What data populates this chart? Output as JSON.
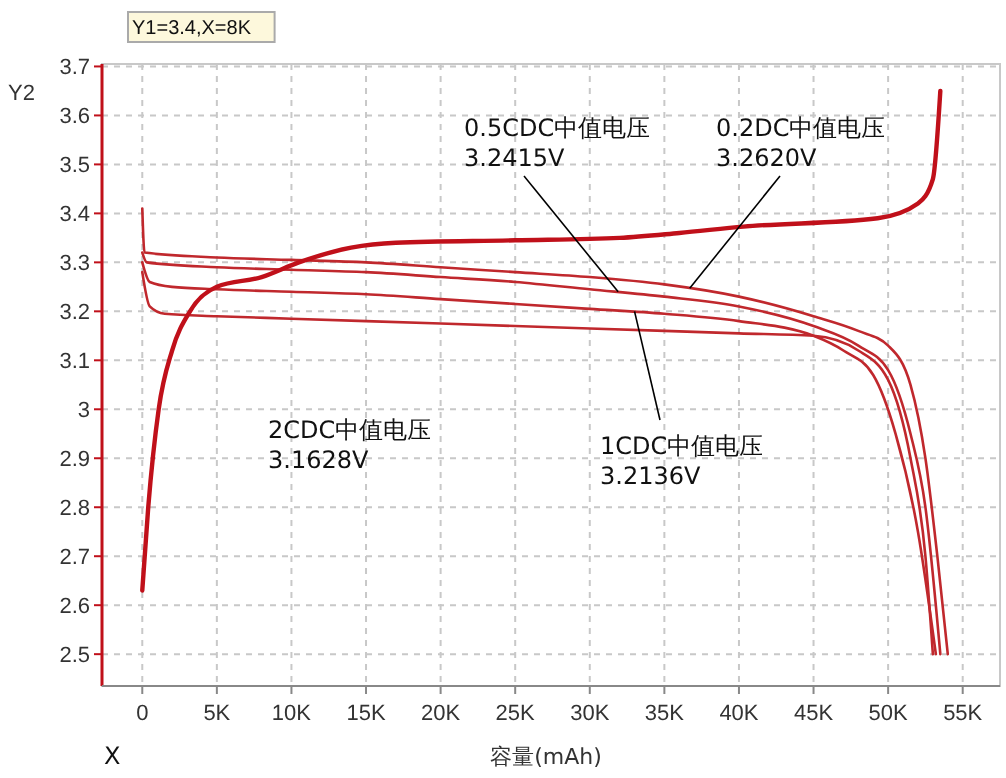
{
  "chart_data": {
    "type": "line",
    "xlabel": "容量(mAh)",
    "ylabel": "Y2",
    "xlim": [
      -2700,
      57500
    ],
    "ylim": [
      2.435,
      3.705
    ],
    "xticks": [
      {
        "value": 0,
        "label": "0"
      },
      {
        "value": 5000,
        "label": "5K"
      },
      {
        "value": 10000,
        "label": "10K"
      },
      {
        "value": 15000,
        "label": "15K"
      },
      {
        "value": 20000,
        "label": "20K"
      },
      {
        "value": 25000,
        "label": "25K"
      },
      {
        "value": 30000,
        "label": "30K"
      },
      {
        "value": 35000,
        "label": "35K"
      },
      {
        "value": 40000,
        "label": "40K"
      },
      {
        "value": 45000,
        "label": "45K"
      },
      {
        "value": 50000,
        "label": "50K"
      },
      {
        "value": 55000,
        "label": "55K"
      }
    ],
    "yticks": [
      2.5,
      2.6,
      2.7,
      2.8,
      2.9,
      3.0,
      3.1,
      3.2,
      3.3,
      3.4,
      3.5,
      3.6,
      3.7
    ],
    "grid": true,
    "marker": "none",
    "line_style": "solid",
    "series": [
      {
        "color": "#c0282d",
        "x": [
          0,
          150,
          5000,
          10000,
          15000,
          20000,
          25000,
          30000,
          35000,
          40000,
          45000,
          48000,
          50000,
          51500,
          52500,
          53300,
          54000
        ],
        "values": [
          3.41,
          3.32,
          3.31,
          3.305,
          3.3,
          3.29,
          3.28,
          3.27,
          3.255,
          3.23,
          3.19,
          3.16,
          3.13,
          3.05,
          2.9,
          2.7,
          2.5
        ]
      },
      {
        "color": "#c0282d",
        "x": [
          0,
          300,
          5000,
          10000,
          15000,
          20000,
          25000,
          30000,
          35000,
          40000,
          45000,
          48000,
          50000,
          51500,
          52500,
          53500
        ],
        "values": [
          3.32,
          3.3,
          3.29,
          3.285,
          3.28,
          3.27,
          3.26,
          3.245,
          3.23,
          3.21,
          3.17,
          3.13,
          3.08,
          2.95,
          2.8,
          2.5
        ]
      },
      {
        "color": "#c0282d",
        "x": [
          0,
          500,
          2000,
          5000,
          10000,
          15000,
          20000,
          25000,
          30000,
          35000,
          40000,
          45000,
          47000,
          49000,
          50500,
          52000,
          53200
        ],
        "values": [
          3.3,
          3.26,
          3.25,
          3.245,
          3.24,
          3.235,
          3.225,
          3.215,
          3.205,
          3.195,
          3.18,
          3.15,
          3.12,
          3.07,
          2.95,
          2.75,
          2.5
        ]
      },
      {
        "color": "#c0282d",
        "x": [
          0,
          500,
          1500,
          5000,
          10000,
          15000,
          20000,
          25000,
          30000,
          35000,
          40000,
          45000,
          48000,
          50000,
          51500,
          52500,
          53000
        ],
        "values": [
          3.28,
          3.21,
          3.195,
          3.19,
          3.185,
          3.18,
          3.175,
          3.17,
          3.165,
          3.16,
          3.155,
          3.15,
          3.12,
          3.06,
          2.9,
          2.7,
          2.5
        ]
      },
      {
        "color": "#c0101a",
        "x": [
          0,
          400,
          1100,
          2000,
          3200,
          5000,
          8000,
          10500,
          14000,
          17000,
          25000,
          32000,
          36000,
          40300,
          49300,
          52000,
          53000,
          53500
        ],
        "values": [
          2.63,
          2.8,
          3.0,
          3.12,
          3.2,
          3.25,
          3.27,
          3.3,
          3.33,
          3.34,
          3.345,
          3.35,
          3.36,
          3.373,
          3.39,
          3.42,
          3.47,
          3.65
        ]
      }
    ],
    "annotations": [
      "Y1=3.4,X=8K",
      "X",
      {
        "text": "0.5CDC中值电压3.2415V",
        "x": 31900,
        "y": 3.24
      },
      {
        "text": "0.2DC中值电压3.2620V",
        "x": 36700,
        "y": 3.247
      },
      "2CDC中值电压3.1628V",
      {
        "text": "1CDC中值电压3.2136V",
        "x": 33000,
        "y": 3.2
      }
    ]
  }
}
